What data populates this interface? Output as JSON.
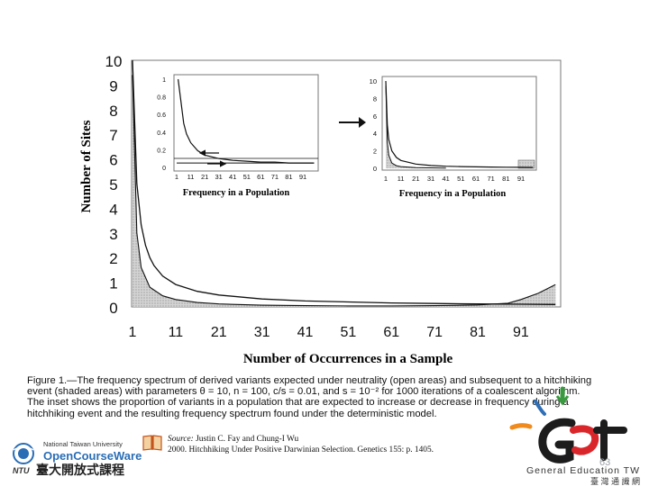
{
  "figure": {
    "ylabel": "Number of Sites",
    "xlabel": "Number of Occurrences in a Sample",
    "yticks": [
      "0",
      "1",
      "2",
      "3",
      "4",
      "5",
      "6",
      "7",
      "8",
      "9",
      "10"
    ],
    "xticks": [
      "1",
      "11",
      "21",
      "31",
      "41",
      "51",
      "61",
      "71",
      "81",
      "91"
    ],
    "inset_left": {
      "yticks": [
        "0",
        "0.2",
        "0.4",
        "0.6",
        "0.8",
        "1"
      ],
      "xticks": [
        "1",
        "11",
        "21",
        "31",
        "41",
        "51",
        "61",
        "71",
        "81",
        "91"
      ],
      "xlabel": "Frequency in a Population"
    },
    "inset_right": {
      "yticks": [
        "0",
        "2",
        "4",
        "6",
        "8",
        "10"
      ],
      "xticks": [
        "1",
        "11",
        "21",
        "31",
        "41",
        "51",
        "61",
        "71",
        "81",
        "91"
      ],
      "xlabel": "Frequency in a Population"
    }
  },
  "caption": {
    "lines": [
      "Figure 1.—The frequency spectrum of derived variants expected under neutrality (open areas) and subsequent to a hitchhiking",
      "event (shaded areas) with parameters θ = 10, n = 100, c/s = 0.01, and s = 10⁻² for 1000 iterations of a coalescent algorithm.",
      "The inset shows the proportion of variants in a population that are expected to increase or decrease in frequency during a",
      "hitchhiking event and the resulting frequency spectrum found under the deterministic model."
    ]
  },
  "source": {
    "label": "Source:",
    "authors": "Justin C. Fay and Chung-I Wu",
    "citation": "2000. Hitchhiking Under Positive Darwinian Selection. Genetics 155: p. 1405."
  },
  "branding": {
    "ntu_top": "National Taiwan University",
    "ntu_ocw": "OpenCourseWare",
    "ntu_abbr": "NTU",
    "ntu_cn": "臺大開放式課程",
    "get_main": "GEt",
    "get_sub": "General Education TW",
    "get_cn": "臺 灣 通 識 網"
  },
  "page_number": "63",
  "colors": {
    "ocw_blue": "#2a6db5",
    "get_red": "#d9262b",
    "get_green": "#3a9a3f",
    "get_orange": "#f08a1c",
    "get_blue": "#2e6fb7"
  },
  "chart_data": [
    {
      "type": "line",
      "title": "",
      "xlabel": "Number of Occurrences in a Sample",
      "ylabel": "Number of Sites",
      "xlim": [
        1,
        100
      ],
      "ylim": [
        0,
        10
      ],
      "grid": false,
      "series": [
        {
          "values_note": "",
          "x": [
            1,
            2,
            3,
            4,
            5,
            6,
            8,
            11,
            16,
            21,
            31,
            41,
            51,
            61,
            71,
            81,
            91,
            99
          ],
          "y": [
            10,
            5,
            3.33,
            2.5,
            2,
            1.67,
            1.25,
            0.91,
            0.63,
            0.48,
            0.32,
            0.24,
            0.2,
            0.16,
            0.14,
            0.12,
            0.11,
            0.1
          ]
        },
        {
          "values_note": "",
          "x": [
            1,
            2,
            3,
            5,
            8,
            11,
            16,
            21,
            31,
            41,
            51,
            61,
            71,
            81,
            88,
            91,
            95,
            99
          ],
          "y": [
            9.4,
            3.0,
            1.6,
            0.8,
            0.45,
            0.3,
            0.18,
            0.12,
            0.07,
            0.05,
            0.04,
            0.04,
            0.05,
            0.08,
            0.15,
            0.3,
            0.55,
            0.9
          ]
        }
      ]
    },
    {
      "type": "line",
      "title": "",
      "xlabel": "Frequency in a Population",
      "ylabel": "",
      "xlim": [
        1,
        100
      ],
      "ylim": [
        0,
        1
      ],
      "series": [
        {
          "x": [
            2,
            4,
            6,
            8,
            11,
            16,
            21,
            31,
            41,
            51,
            61,
            71,
            81,
            91,
            99
          ],
          "y": [
            1.0,
            0.75,
            0.5,
            0.38,
            0.28,
            0.19,
            0.14,
            0.1,
            0.08,
            0.07,
            0.06,
            0.06,
            0.05,
            0.05,
            0.05
          ]
        },
        {
          "x": [
            1,
            99
          ],
          "y": [
            0.05,
            0.05
          ]
        }
      ]
    },
    {
      "type": "line",
      "title": "",
      "xlabel": "Frequency in a Population",
      "ylabel": "",
      "xlim": [
        1,
        100
      ],
      "ylim": [
        0,
        10
      ],
      "series": [
        {
          "x": [
            1,
            2,
            3,
            5,
            8,
            11,
            21,
            31,
            41,
            51,
            61,
            71,
            81,
            91,
            99
          ],
          "y": [
            10,
            5,
            3.3,
            2,
            1.25,
            0.9,
            0.48,
            0.32,
            0.24,
            0.2,
            0.16,
            0.14,
            0.12,
            0.11,
            0.1
          ]
        },
        {
          "x": [
            1,
            2,
            3,
            5,
            8,
            11,
            21,
            41,
            81,
            91,
            99
          ],
          "y": [
            9.5,
            3.0,
            1.5,
            0.6,
            0.3,
            0.2,
            0.08,
            0.02,
            0.01,
            0.5,
            0.5
          ]
        }
      ]
    }
  ]
}
